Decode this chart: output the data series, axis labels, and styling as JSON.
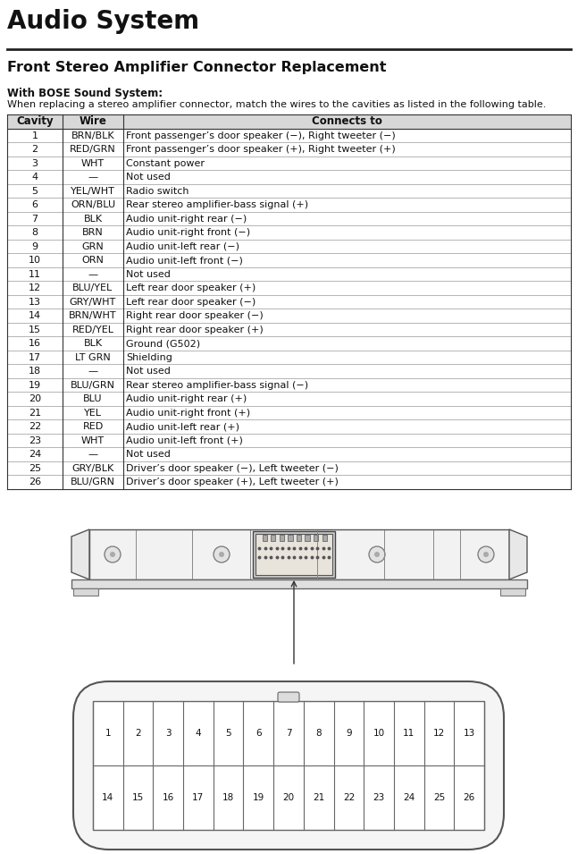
{
  "title": "Audio System",
  "subtitle": "Front Stereo Amplifier Connector Replacement",
  "bose_label": "With BOSE Sound System:",
  "bose_desc": "When replacing a stereo amplifier connector, match the wires to the cavities as listed in the following table.",
  "table_headers": [
    "Cavity",
    "Wire",
    "Connects to"
  ],
  "table_rows": [
    [
      "1",
      "BRN/BLK",
      "Front passenger’s door speaker (−), Right tweeter (−)"
    ],
    [
      "2",
      "RED/GRN",
      "Front passenger’s door speaker (+), Right tweeter (+)"
    ],
    [
      "3",
      "WHT",
      "Constant power"
    ],
    [
      "4",
      "—",
      "Not used"
    ],
    [
      "5",
      "YEL/WHT",
      "Radio switch"
    ],
    [
      "6",
      "ORN/BLU",
      "Rear stereo amplifier-bass signal (+)"
    ],
    [
      "7",
      "BLK",
      "Audio unit-right rear (−)"
    ],
    [
      "8",
      "BRN",
      "Audio unit-right front (−)"
    ],
    [
      "9",
      "GRN",
      "Audio unit-left rear (−)"
    ],
    [
      "10",
      "ORN",
      "Audio unit-left front (−)"
    ],
    [
      "11",
      "—",
      "Not used"
    ],
    [
      "12",
      "BLU/YEL",
      "Left rear door speaker (+)"
    ],
    [
      "13",
      "GRY/WHT",
      "Left rear door speaker (−)"
    ],
    [
      "14",
      "BRN/WHT",
      "Right rear door speaker (−)"
    ],
    [
      "15",
      "RED/YEL",
      "Right rear door speaker (+)"
    ],
    [
      "16",
      "BLK",
      "Ground (G502)"
    ],
    [
      "17",
      "LT GRN",
      "Shielding"
    ],
    [
      "18",
      "—",
      "Not used"
    ],
    [
      "19",
      "BLU/GRN",
      "Rear stereo amplifier-bass signal (−)"
    ],
    [
      "20",
      "BLU",
      "Audio unit-right rear (+)"
    ],
    [
      "21",
      "YEL",
      "Audio unit-right front (+)"
    ],
    [
      "22",
      "RED",
      "Audio unit-left rear (+)"
    ],
    [
      "23",
      "WHT",
      "Audio unit-left front (+)"
    ],
    [
      "24",
      "—",
      "Not used"
    ],
    [
      "25",
      "GRY/BLK",
      "Driver’s door speaker (−), Left tweeter (−)"
    ],
    [
      "26",
      "BLU/GRN",
      "Driver’s door speaker (+), Left tweeter (+)"
    ]
  ],
  "bg_color": "#ffffff",
  "text_color": "#111111",
  "line_color": "#333333",
  "connector_top_numbers_row1": [
    "1",
    "2",
    "3",
    "4",
    "5",
    "6",
    "7",
    "8",
    "9",
    "10",
    "11",
    "12",
    "13"
  ],
  "connector_top_numbers_row2": [
    "14",
    "15",
    "16",
    "17",
    "18",
    "19",
    "20",
    "21",
    "22",
    "23",
    "24",
    "25",
    "26"
  ]
}
